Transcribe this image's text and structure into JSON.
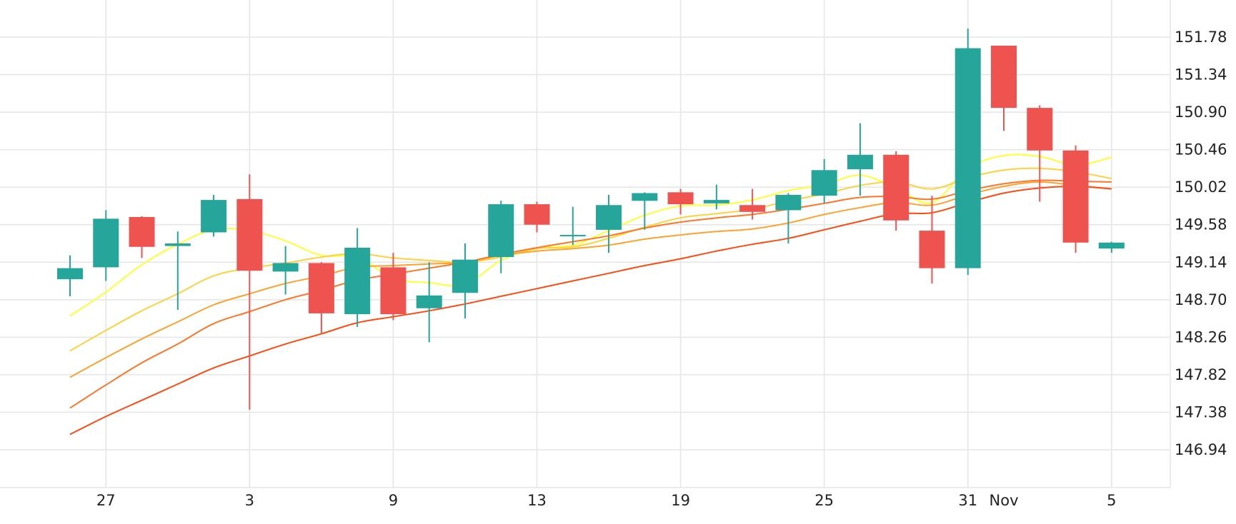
{
  "colors": {
    "background": "#ffffff",
    "grid": "#e5e5e5",
    "up": "#26a69a",
    "down": "#ef5350",
    "ma": [
      "#ffff33",
      "#ffd23d",
      "#ffa22d",
      "#ff7626",
      "#ff4a11"
    ]
  },
  "chart_data": {
    "type": "candlestick",
    "grid": true,
    "legend": "none",
    "y_axis_position": "right",
    "ylim": [
      146.5,
      152.2
    ],
    "x_ticks": [
      {
        "label": "27",
        "index": 1
      },
      {
        "label": "3",
        "index": 5
      },
      {
        "label": "9",
        "index": 9
      },
      {
        "label": "13",
        "index": 13
      },
      {
        "label": "19",
        "index": 17
      },
      {
        "label": "25",
        "index": 21
      },
      {
        "label": "31",
        "index": 25
      },
      {
        "label": "Nov",
        "index": 26
      },
      {
        "label": "5",
        "index": 29
      }
    ],
    "y_ticks": [
      151.78,
      151.34,
      150.9,
      150.46,
      150.02,
      149.58,
      149.14,
      148.7,
      148.26,
      147.82,
      147.38,
      146.94
    ],
    "candles": [
      {
        "open": 148.94,
        "high": 149.22,
        "low": 148.74,
        "close": 149.07
      },
      {
        "open": 149.08,
        "high": 149.75,
        "low": 148.92,
        "close": 149.65
      },
      {
        "open": 149.67,
        "high": 149.68,
        "low": 149.19,
        "close": 149.32
      },
      {
        "open": 149.33,
        "high": 149.5,
        "low": 148.58,
        "close": 149.36
      },
      {
        "open": 149.49,
        "high": 149.93,
        "low": 149.44,
        "close": 149.87
      },
      {
        "open": 149.88,
        "high": 150.17,
        "low": 147.41,
        "close": 149.04
      },
      {
        "open": 149.03,
        "high": 149.33,
        "low": 148.76,
        "close": 149.13
      },
      {
        "open": 149.13,
        "high": 149.14,
        "low": 148.31,
        "close": 148.54
      },
      {
        "open": 148.53,
        "high": 149.54,
        "low": 148.38,
        "close": 149.31
      },
      {
        "open": 149.08,
        "high": 149.25,
        "low": 148.46,
        "close": 148.53
      },
      {
        "open": 148.6,
        "high": 149.14,
        "low": 148.2,
        "close": 148.75
      },
      {
        "open": 148.78,
        "high": 149.36,
        "low": 148.48,
        "close": 149.17
      },
      {
        "open": 149.2,
        "high": 149.86,
        "low": 149.01,
        "close": 149.82
      },
      {
        "open": 149.82,
        "high": 149.85,
        "low": 149.49,
        "close": 149.58
      },
      {
        "open": 149.45,
        "high": 149.79,
        "low": 149.34,
        "close": 149.46
      },
      {
        "open": 149.52,
        "high": 149.93,
        "low": 149.25,
        "close": 149.81
      },
      {
        "open": 149.86,
        "high": 149.96,
        "low": 149.52,
        "close": 149.95
      },
      {
        "open": 149.96,
        "high": 150.0,
        "low": 149.7,
        "close": 149.82
      },
      {
        "open": 149.83,
        "high": 150.05,
        "low": 149.76,
        "close": 149.87
      },
      {
        "open": 149.81,
        "high": 150.0,
        "low": 149.64,
        "close": 149.73
      },
      {
        "open": 149.75,
        "high": 149.95,
        "low": 149.36,
        "close": 149.93
      },
      {
        "open": 149.92,
        "high": 150.35,
        "low": 149.83,
        "close": 150.22
      },
      {
        "open": 150.23,
        "high": 150.77,
        "low": 149.92,
        "close": 150.4
      },
      {
        "open": 150.4,
        "high": 150.44,
        "low": 149.51,
        "close": 149.63
      },
      {
        "open": 149.51,
        "high": 149.92,
        "low": 148.89,
        "close": 149.07
      },
      {
        "open": 149.07,
        "high": 151.88,
        "low": 148.99,
        "close": 151.65
      },
      {
        "open": 151.68,
        "high": 151.68,
        "low": 150.68,
        "close": 150.95
      },
      {
        "open": 150.95,
        "high": 150.98,
        "low": 149.85,
        "close": 150.45
      },
      {
        "open": 150.45,
        "high": 150.51,
        "low": 149.25,
        "close": 149.37
      },
      {
        "open": 149.3,
        "high": 149.38,
        "low": 149.25,
        "close": 149.37
      }
    ],
    "moving_averages": [
      {
        "values": [
          148.51,
          148.79,
          149.11,
          149.35,
          149.52,
          149.51,
          149.39,
          149.22,
          149.2,
          148.95,
          148.9,
          148.88,
          149.16,
          149.3,
          149.34,
          149.51,
          149.69,
          149.8,
          149.81,
          149.87,
          149.98,
          150.05,
          150.16,
          150.01,
          149.84,
          150.24,
          150.39,
          150.38,
          150.28,
          150.37
        ]
      },
      {
        "values": [
          148.1,
          148.34,
          148.57,
          148.77,
          148.98,
          149.07,
          149.13,
          149.2,
          149.24,
          149.19,
          149.16,
          149.14,
          149.2,
          149.3,
          149.32,
          149.42,
          149.55,
          149.66,
          149.71,
          149.76,
          149.86,
          149.94,
          150.04,
          150.08,
          150.0,
          150.13,
          150.22,
          150.24,
          150.2,
          150.12
        ]
      },
      {
        "values": [
          147.79,
          148.02,
          148.24,
          148.44,
          148.64,
          148.77,
          148.89,
          148.98,
          149.08,
          149.1,
          149.12,
          149.14,
          149.22,
          149.27,
          149.3,
          149.34,
          149.41,
          149.46,
          149.5,
          149.53,
          149.6,
          149.7,
          149.78,
          149.84,
          149.81,
          149.93,
          150.03,
          150.08,
          150.04,
          150.0
        ]
      },
      {
        "values": [
          147.43,
          147.7,
          147.96,
          148.18,
          148.42,
          148.56,
          148.7,
          148.81,
          148.93,
          149.0,
          149.07,
          149.14,
          149.23,
          149.31,
          149.38,
          149.45,
          149.54,
          149.61,
          149.66,
          149.7,
          149.76,
          149.83,
          149.9,
          149.91,
          149.88,
          149.98,
          150.06,
          150.1,
          150.09,
          150.08
        ]
      },
      {
        "values": [
          147.12,
          147.33,
          147.52,
          147.71,
          147.9,
          148.04,
          148.18,
          148.3,
          148.43,
          148.5,
          148.57,
          148.65,
          148.74,
          148.83,
          148.92,
          149.01,
          149.1,
          149.18,
          149.27,
          149.35,
          149.42,
          149.52,
          149.62,
          149.71,
          149.72,
          149.84,
          149.95,
          150.01,
          150.03,
          150.0
        ]
      }
    ]
  }
}
